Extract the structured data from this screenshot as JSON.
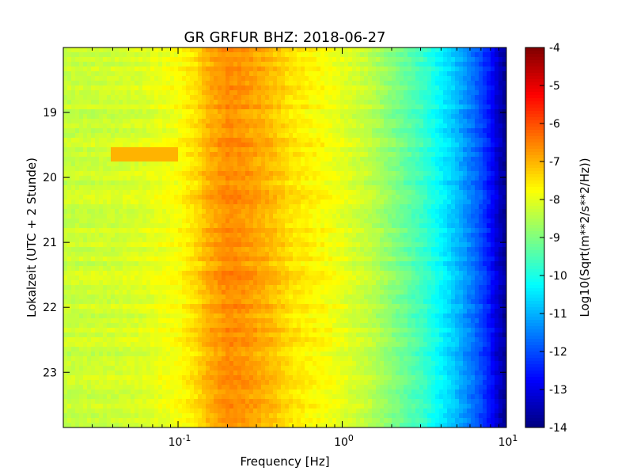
{
  "chart_data": {
    "type": "heatmap",
    "title": "GR GRFUR BHZ: 2018-06-27",
    "xlabel": "Frequency [Hz]",
    "ylabel": "Lokalzeit (UTC + 2 Stunde)",
    "x_scale": "log",
    "xlim": [
      0.02,
      10
    ],
    "x_ticks": [
      {
        "value": 0.1,
        "base": "10",
        "exp": "-1"
      },
      {
        "value": 1,
        "base": "10",
        "exp": "0"
      },
      {
        "value": 10,
        "base": "10",
        "exp": "1"
      }
    ],
    "ylim": [
      18.0,
      23.85
    ],
    "y_inverted": true,
    "y_ticks": [
      "19",
      "20",
      "21",
      "22",
      "23"
    ],
    "colorbar": {
      "label": "Log10(Sqrt(m**2/s**2/Hz))",
      "colormap": "jet",
      "range": [
        -14,
        -4
      ],
      "ticks": [
        "-4",
        "-5",
        "-6",
        "-7",
        "-8",
        "-9",
        "-10",
        "-11",
        "-12",
        "-13",
        "-14"
      ]
    },
    "spectrum_profile": {
      "description_units": "Log10(Sqrt(m**2/s**2/Hz)) vs frequency in Hz",
      "freq_hz": [
        0.02,
        0.04,
        0.06,
        0.1,
        0.13,
        0.15,
        0.2,
        0.25,
        0.35,
        0.5,
        0.8,
        1.0,
        1.5,
        2.0,
        3.0,
        4.0,
        5.0,
        6.0,
        7.0,
        8.0,
        9.0,
        10.0
      ],
      "level": [
        -8.3,
        -8.2,
        -8.1,
        -7.8,
        -7.4,
        -7.0,
        -6.6,
        -6.7,
        -7.0,
        -7.5,
        -7.8,
        -8.0,
        -8.4,
        -8.9,
        -9.6,
        -10.3,
        -10.9,
        -11.5,
        -12.0,
        -12.6,
        -13.3,
        -13.8
      ]
    },
    "feature_band": {
      "time_from": 19.55,
      "time_to": 19.75,
      "freq_from": 0.04,
      "freq_to": 0.1,
      "level": -7.0
    }
  }
}
